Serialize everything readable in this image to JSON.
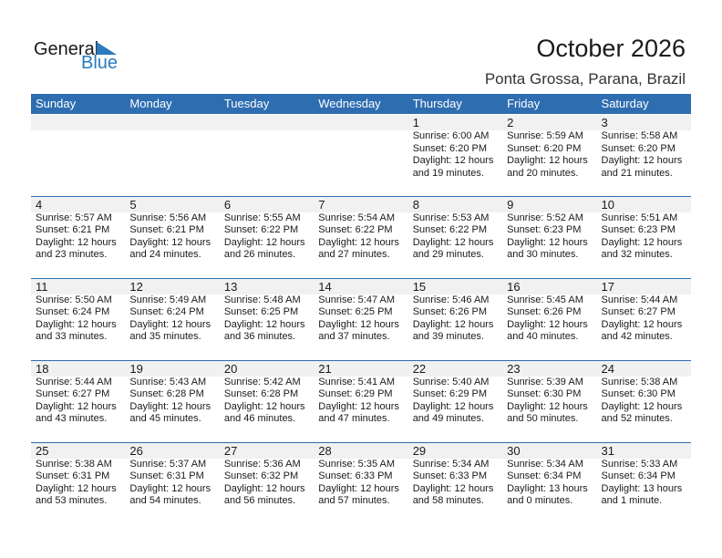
{
  "logo": {
    "line1": "General",
    "line2": "Blue"
  },
  "header": {
    "title": "October 2026",
    "location": "Ponta Grossa, Parana, Brazil"
  },
  "weekdays": [
    "Sunday",
    "Monday",
    "Tuesday",
    "Wednesday",
    "Thursday",
    "Friday",
    "Saturday"
  ],
  "colors": {
    "accent": "#2e6db0",
    "day_row": "#f1f1f1"
  },
  "weeks": [
    [
      null,
      null,
      null,
      null,
      {
        "day": "1",
        "sunrise": "Sunrise: 6:00 AM",
        "sunset": "Sunset: 6:20 PM",
        "daylight1": "Daylight: 12 hours",
        "daylight2": "and 19 minutes."
      },
      {
        "day": "2",
        "sunrise": "Sunrise: 5:59 AM",
        "sunset": "Sunset: 6:20 PM",
        "daylight1": "Daylight: 12 hours",
        "daylight2": "and 20 minutes."
      },
      {
        "day": "3",
        "sunrise": "Sunrise: 5:58 AM",
        "sunset": "Sunset: 6:20 PM",
        "daylight1": "Daylight: 12 hours",
        "daylight2": "and 21 minutes."
      }
    ],
    [
      {
        "day": "4",
        "sunrise": "Sunrise: 5:57 AM",
        "sunset": "Sunset: 6:21 PM",
        "daylight1": "Daylight: 12 hours",
        "daylight2": "and 23 minutes."
      },
      {
        "day": "5",
        "sunrise": "Sunrise: 5:56 AM",
        "sunset": "Sunset: 6:21 PM",
        "daylight1": "Daylight: 12 hours",
        "daylight2": "and 24 minutes."
      },
      {
        "day": "6",
        "sunrise": "Sunrise: 5:55 AM",
        "sunset": "Sunset: 6:22 PM",
        "daylight1": "Daylight: 12 hours",
        "daylight2": "and 26 minutes."
      },
      {
        "day": "7",
        "sunrise": "Sunrise: 5:54 AM",
        "sunset": "Sunset: 6:22 PM",
        "daylight1": "Daylight: 12 hours",
        "daylight2": "and 27 minutes."
      },
      {
        "day": "8",
        "sunrise": "Sunrise: 5:53 AM",
        "sunset": "Sunset: 6:22 PM",
        "daylight1": "Daylight: 12 hours",
        "daylight2": "and 29 minutes."
      },
      {
        "day": "9",
        "sunrise": "Sunrise: 5:52 AM",
        "sunset": "Sunset: 6:23 PM",
        "daylight1": "Daylight: 12 hours",
        "daylight2": "and 30 minutes."
      },
      {
        "day": "10",
        "sunrise": "Sunrise: 5:51 AM",
        "sunset": "Sunset: 6:23 PM",
        "daylight1": "Daylight: 12 hours",
        "daylight2": "and 32 minutes."
      }
    ],
    [
      {
        "day": "11",
        "sunrise": "Sunrise: 5:50 AM",
        "sunset": "Sunset: 6:24 PM",
        "daylight1": "Daylight: 12 hours",
        "daylight2": "and 33 minutes."
      },
      {
        "day": "12",
        "sunrise": "Sunrise: 5:49 AM",
        "sunset": "Sunset: 6:24 PM",
        "daylight1": "Daylight: 12 hours",
        "daylight2": "and 35 minutes."
      },
      {
        "day": "13",
        "sunrise": "Sunrise: 5:48 AM",
        "sunset": "Sunset: 6:25 PM",
        "daylight1": "Daylight: 12 hours",
        "daylight2": "and 36 minutes."
      },
      {
        "day": "14",
        "sunrise": "Sunrise: 5:47 AM",
        "sunset": "Sunset: 6:25 PM",
        "daylight1": "Daylight: 12 hours",
        "daylight2": "and 37 minutes."
      },
      {
        "day": "15",
        "sunrise": "Sunrise: 5:46 AM",
        "sunset": "Sunset: 6:26 PM",
        "daylight1": "Daylight: 12 hours",
        "daylight2": "and 39 minutes."
      },
      {
        "day": "16",
        "sunrise": "Sunrise: 5:45 AM",
        "sunset": "Sunset: 6:26 PM",
        "daylight1": "Daylight: 12 hours",
        "daylight2": "and 40 minutes."
      },
      {
        "day": "17",
        "sunrise": "Sunrise: 5:44 AM",
        "sunset": "Sunset: 6:27 PM",
        "daylight1": "Daylight: 12 hours",
        "daylight2": "and 42 minutes."
      }
    ],
    [
      {
        "day": "18",
        "sunrise": "Sunrise: 5:44 AM",
        "sunset": "Sunset: 6:27 PM",
        "daylight1": "Daylight: 12 hours",
        "daylight2": "and 43 minutes."
      },
      {
        "day": "19",
        "sunrise": "Sunrise: 5:43 AM",
        "sunset": "Sunset: 6:28 PM",
        "daylight1": "Daylight: 12 hours",
        "daylight2": "and 45 minutes."
      },
      {
        "day": "20",
        "sunrise": "Sunrise: 5:42 AM",
        "sunset": "Sunset: 6:28 PM",
        "daylight1": "Daylight: 12 hours",
        "daylight2": "and 46 minutes."
      },
      {
        "day": "21",
        "sunrise": "Sunrise: 5:41 AM",
        "sunset": "Sunset: 6:29 PM",
        "daylight1": "Daylight: 12 hours",
        "daylight2": "and 47 minutes."
      },
      {
        "day": "22",
        "sunrise": "Sunrise: 5:40 AM",
        "sunset": "Sunset: 6:29 PM",
        "daylight1": "Daylight: 12 hours",
        "daylight2": "and 49 minutes."
      },
      {
        "day": "23",
        "sunrise": "Sunrise: 5:39 AM",
        "sunset": "Sunset: 6:30 PM",
        "daylight1": "Daylight: 12 hours",
        "daylight2": "and 50 minutes."
      },
      {
        "day": "24",
        "sunrise": "Sunrise: 5:38 AM",
        "sunset": "Sunset: 6:30 PM",
        "daylight1": "Daylight: 12 hours",
        "daylight2": "and 52 minutes."
      }
    ],
    [
      {
        "day": "25",
        "sunrise": "Sunrise: 5:38 AM",
        "sunset": "Sunset: 6:31 PM",
        "daylight1": "Daylight: 12 hours",
        "daylight2": "and 53 minutes."
      },
      {
        "day": "26",
        "sunrise": "Sunrise: 5:37 AM",
        "sunset": "Sunset: 6:31 PM",
        "daylight1": "Daylight: 12 hours",
        "daylight2": "and 54 minutes."
      },
      {
        "day": "27",
        "sunrise": "Sunrise: 5:36 AM",
        "sunset": "Sunset: 6:32 PM",
        "daylight1": "Daylight: 12 hours",
        "daylight2": "and 56 minutes."
      },
      {
        "day": "28",
        "sunrise": "Sunrise: 5:35 AM",
        "sunset": "Sunset: 6:33 PM",
        "daylight1": "Daylight: 12 hours",
        "daylight2": "and 57 minutes."
      },
      {
        "day": "29",
        "sunrise": "Sunrise: 5:34 AM",
        "sunset": "Sunset: 6:33 PM",
        "daylight1": "Daylight: 12 hours",
        "daylight2": "and 58 minutes."
      },
      {
        "day": "30",
        "sunrise": "Sunrise: 5:34 AM",
        "sunset": "Sunset: 6:34 PM",
        "daylight1": "Daylight: 13 hours",
        "daylight2": "and 0 minutes."
      },
      {
        "day": "31",
        "sunrise": "Sunrise: 5:33 AM",
        "sunset": "Sunset: 6:34 PM",
        "daylight1": "Daylight: 13 hours",
        "daylight2": "and 1 minute."
      }
    ]
  ]
}
